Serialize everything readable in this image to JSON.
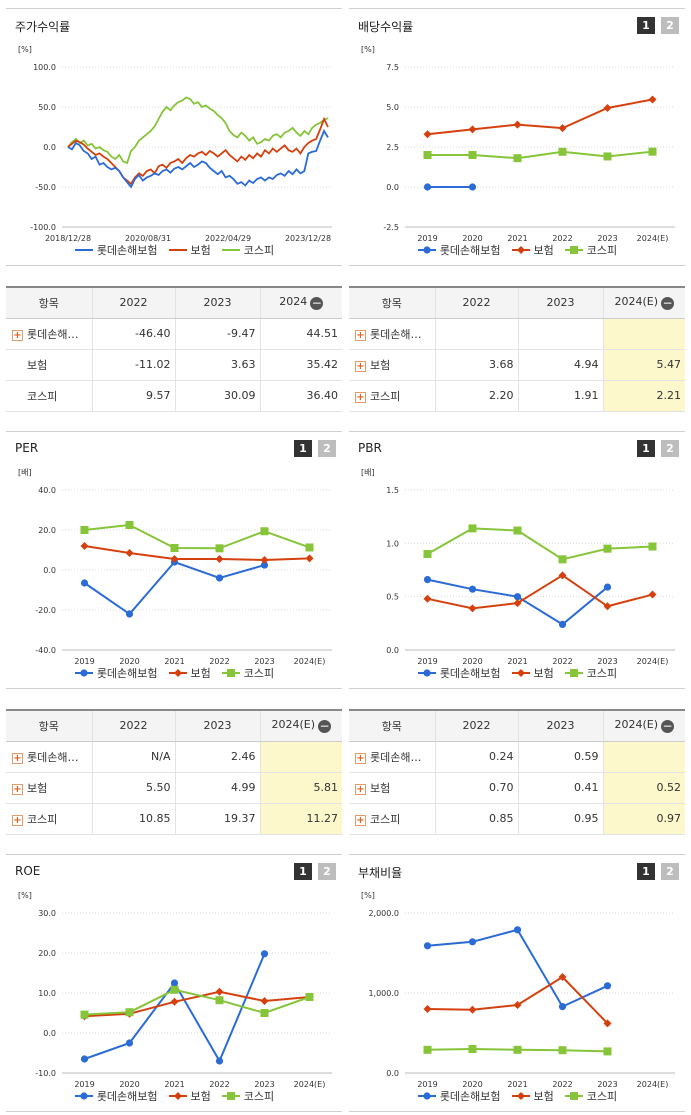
{
  "series_colors": {
    "company": "#2b6bd6",
    "industry": "#d4410f",
    "market": "#86c43a"
  },
  "legend": [
    "롯데손해보험",
    "보험",
    "코스피"
  ],
  "panels": [
    {
      "title": "주가수익률",
      "tabs": []
    },
    {
      "title": "배당수익률",
      "tabs": [
        "1",
        "2"
      ]
    },
    {
      "title": "PER",
      "tabs": [
        "1",
        "2"
      ]
    },
    {
      "title": "PBR",
      "tabs": [
        "1",
        "2"
      ]
    },
    {
      "title": "ROE",
      "tabs": [
        "1",
        "2"
      ]
    },
    {
      "title": "부채비율",
      "tabs": [
        "1",
        "2"
      ]
    }
  ],
  "chart_data": [
    {
      "type": "line",
      "title": "주가수익률",
      "unit": "[%]",
      "ylim": [
        -100,
        100
      ],
      "yticks": [
        "100.0",
        "50.0",
        "0.0",
        "-50.0",
        "-100.0"
      ],
      "x_ticks": [
        "2018/12/28",
        "2020/08/31",
        "2022/04/29",
        "2023/12/28"
      ],
      "n_points": 67,
      "series": [
        {
          "name": "롯데손해보험",
          "values": [
            0,
            -3,
            5,
            2,
            -5,
            -8,
            -15,
            -12,
            -22,
            -20,
            -25,
            -28,
            -26,
            -30,
            -38,
            -44,
            -50,
            -40,
            -35,
            -42,
            -38,
            -36,
            -33,
            -35,
            -30,
            -28,
            -32,
            -27,
            -25,
            -28,
            -24,
            -20,
            -25,
            -22,
            -18,
            -20,
            -26,
            -30,
            -34,
            -30,
            -38,
            -36,
            -40,
            -46,
            -44,
            -48,
            -42,
            -45,
            -40,
            -38,
            -42,
            -38,
            -40,
            -35,
            -33,
            -36,
            -30,
            -34,
            -28,
            -33,
            -30,
            -8,
            -6,
            -5,
            8,
            20,
            12
          ]
        },
        {
          "name": "보험",
          "values": [
            0,
            4,
            8,
            6,
            3,
            -2,
            -6,
            -10,
            -8,
            -12,
            -15,
            -20,
            -25,
            -30,
            -38,
            -42,
            -46,
            -38,
            -33,
            -36,
            -30,
            -28,
            -33,
            -24,
            -22,
            -26,
            -20,
            -18,
            -15,
            -20,
            -14,
            -10,
            -12,
            -8,
            -6,
            -10,
            -5,
            -8,
            -12,
            -8,
            -4,
            -10,
            -14,
            -18,
            -12,
            -16,
            -10,
            -14,
            -8,
            -12,
            -4,
            -8,
            -2,
            -6,
            -2,
            2,
            -4,
            -6,
            -2,
            -8,
            0,
            5,
            8,
            10,
            22,
            35,
            25
          ]
        },
        {
          "name": "코스피",
          "values": [
            0,
            6,
            10,
            5,
            8,
            2,
            4,
            -2,
            0,
            -4,
            -6,
            -12,
            -15,
            -10,
            -18,
            -20,
            -5,
            0,
            8,
            12,
            16,
            20,
            26,
            35,
            44,
            50,
            46,
            52,
            56,
            58,
            62,
            60,
            54,
            56,
            50,
            52,
            48,
            45,
            40,
            36,
            30,
            20,
            15,
            12,
            18,
            14,
            8,
            12,
            4,
            6,
            10,
            8,
            14,
            16,
            12,
            18,
            20,
            24,
            18,
            14,
            20,
            16,
            24,
            28,
            30,
            34,
            36
          ]
        }
      ]
    },
    {
      "type": "line",
      "title": "배당수익률",
      "unit": "[%]",
      "ylim": [
        -2.5,
        7.5
      ],
      "yticks": [
        "7.5",
        "5.0",
        "2.5",
        "0.0",
        "-2.5"
      ],
      "categories": [
        "2019",
        "2020",
        "2021",
        "2022",
        "2023",
        "2024(E)"
      ],
      "series": [
        {
          "name": "롯데손해보험",
          "values": [
            0.0,
            0.0,
            null,
            null,
            null,
            null
          ]
        },
        {
          "name": "보험",
          "values": [
            3.3,
            3.6,
            3.9,
            3.68,
            4.94,
            5.47
          ]
        },
        {
          "name": "코스피",
          "values": [
            2.0,
            2.0,
            1.8,
            2.2,
            1.91,
            2.21
          ]
        }
      ]
    },
    {
      "type": "line",
      "title": "PER",
      "unit": "[배]",
      "ylim": [
        -40,
        40
      ],
      "yticks": [
        "40.0",
        "20.0",
        "0.0",
        "-20.0",
        "-40.0"
      ],
      "categories": [
        "2019",
        "2020",
        "2021",
        "2022",
        "2023",
        "2024(E)"
      ],
      "series": [
        {
          "name": "롯데손해보험",
          "values": [
            -6.5,
            -22,
            4,
            -4,
            2.46,
            null
          ]
        },
        {
          "name": "보험",
          "values": [
            12,
            8.5,
            5.5,
            5.5,
            4.99,
            5.81
          ]
        },
        {
          "name": "코스피",
          "values": [
            20,
            22.5,
            11,
            10.85,
            19.37,
            11.27
          ]
        }
      ]
    },
    {
      "type": "line",
      "title": "PBR",
      "unit": "[배]",
      "ylim": [
        0,
        1.5
      ],
      "yticks": [
        "1.5",
        "1.0",
        "0.5",
        "0.0"
      ],
      "categories": [
        "2019",
        "2020",
        "2021",
        "2022",
        "2023",
        "2024(E)"
      ],
      "series": [
        {
          "name": "롯데손해보험",
          "values": [
            0.66,
            0.57,
            0.5,
            0.24,
            0.59,
            null
          ]
        },
        {
          "name": "보험",
          "values": [
            0.48,
            0.39,
            0.44,
            0.7,
            0.41,
            0.52
          ]
        },
        {
          "name": "코스피",
          "values": [
            0.9,
            1.14,
            1.12,
            0.85,
            0.95,
            0.97
          ]
        }
      ]
    },
    {
      "type": "line",
      "title": "ROE",
      "unit": "[%]",
      "ylim": [
        -10,
        30
      ],
      "yticks": [
        "30.0",
        "20.0",
        "10.0",
        "0.0",
        "-10.0"
      ],
      "categories": [
        "2019",
        "2020",
        "2021",
        "2022",
        "2023",
        "2024(E)"
      ],
      "series": [
        {
          "name": "롯데손해보험",
          "values": [
            -6.5,
            -2.5,
            12.5,
            -7,
            19.8,
            null
          ]
        },
        {
          "name": "보험",
          "values": [
            4.2,
            4.8,
            7.8,
            10.3,
            8,
            9
          ]
        },
        {
          "name": "코스피",
          "values": [
            4.6,
            5.2,
            10.8,
            8.2,
            5,
            9
          ]
        }
      ]
    },
    {
      "type": "line",
      "title": "부채비율",
      "unit": "[%]",
      "ylim": [
        0,
        2000
      ],
      "yticks": [
        "2,000.0",
        "1,000.0",
        "0.0"
      ],
      "categories": [
        "2019",
        "2020",
        "2021",
        "2022",
        "2023",
        "2024(E)"
      ],
      "series": [
        {
          "name": "롯데손해보험",
          "values": [
            1590,
            1640,
            1790,
            830,
            1090,
            null
          ]
        },
        {
          "name": "보험",
          "values": [
            800,
            790,
            850,
            1200,
            620,
            null
          ]
        },
        {
          "name": "코스피",
          "values": [
            290,
            300,
            290,
            285,
            270,
            null
          ]
        }
      ]
    }
  ],
  "tables": [
    {
      "header": [
        "항목",
        "2022",
        "2023",
        "2024"
      ],
      "rows": [
        {
          "label": "롯데손해…",
          "expand": true,
          "values": [
            "-46.40",
            "-9.47",
            "44.51"
          ]
        },
        {
          "label": "보험",
          "expand": false,
          "values": [
            "-11.02",
            "3.63",
            "35.42"
          ]
        },
        {
          "label": "코스피",
          "expand": false,
          "values": [
            "9.57",
            "30.09",
            "36.40"
          ]
        }
      ]
    },
    {
      "header": [
        "항목",
        "2022",
        "2023",
        "2024(E)"
      ],
      "rows": [
        {
          "label": "롯데손해…",
          "expand": true,
          "values": [
            "",
            "",
            ""
          ]
        },
        {
          "label": "보험",
          "expand": true,
          "values": [
            "3.68",
            "4.94",
            "5.47"
          ]
        },
        {
          "label": "코스피",
          "expand": true,
          "values": [
            "2.20",
            "1.91",
            "2.21"
          ]
        }
      ]
    },
    {
      "header": [
        "항목",
        "2022",
        "2023",
        "2024(E)"
      ],
      "rows": [
        {
          "label": "롯데손해…",
          "expand": true,
          "values": [
            "N/A",
            "2.46",
            ""
          ]
        },
        {
          "label": "보험",
          "expand": true,
          "values": [
            "5.50",
            "4.99",
            "5.81"
          ]
        },
        {
          "label": "코스피",
          "expand": true,
          "values": [
            "10.85",
            "19.37",
            "11.27"
          ]
        }
      ]
    },
    {
      "header": [
        "항목",
        "2022",
        "2023",
        "2024(E)"
      ],
      "rows": [
        {
          "label": "롯데손해…",
          "expand": true,
          "values": [
            "0.24",
            "0.59",
            ""
          ]
        },
        {
          "label": "보험",
          "expand": true,
          "values": [
            "0.70",
            "0.41",
            "0.52"
          ]
        },
        {
          "label": "코스피",
          "expand": true,
          "values": [
            "0.85",
            "0.95",
            "0.97"
          ]
        }
      ]
    }
  ]
}
